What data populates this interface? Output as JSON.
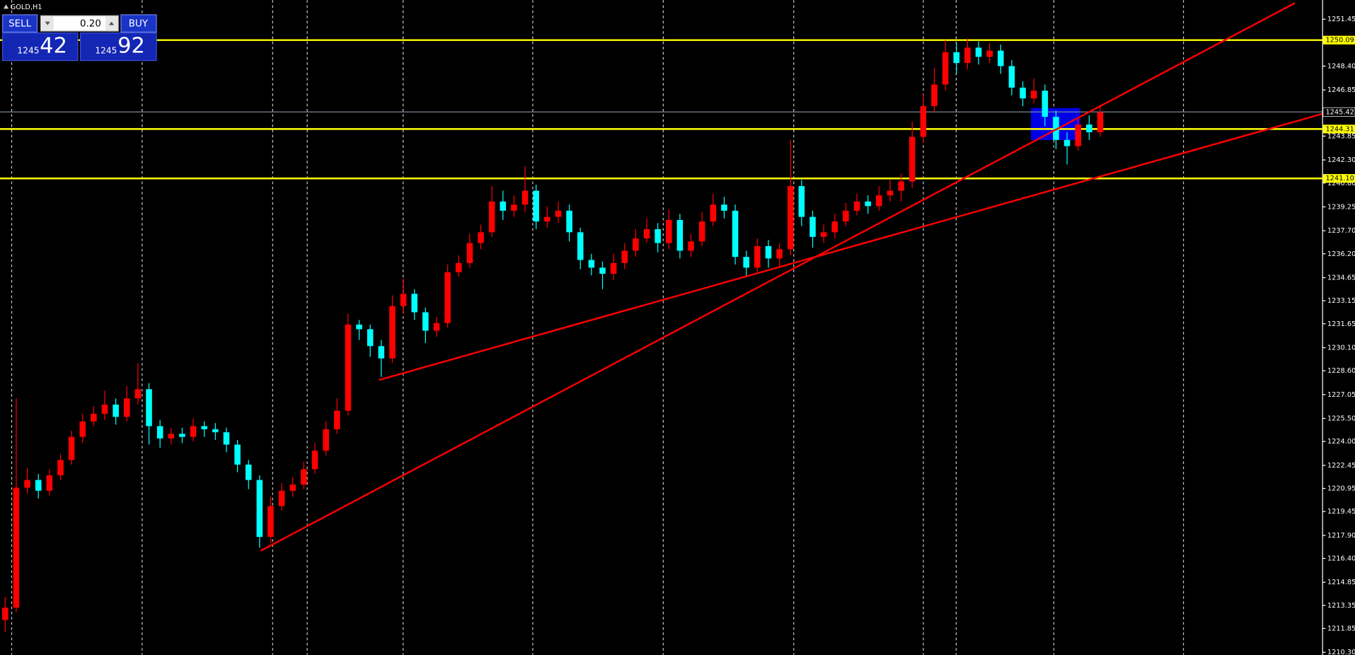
{
  "chart_data": {
    "type": "candlestick",
    "title": "GOLD,H1",
    "up_color": "#ff0000",
    "down_color": "#00ffff",
    "grid": true,
    "ylim": [
      1210.13,
      1252.69
    ],
    "yticks": [
      1251.45,
      {
        "value": 1248.4,
        "label": "1248.40"
      },
      1246.85,
      1243.85,
      {
        "value": 1242.3,
        "label": "1242.30"
      },
      {
        "value": 1240.8,
        "label": "1240.80"
      },
      1239.25,
      {
        "value": 1237.7,
        "label": "1237.70"
      },
      {
        "value": 1236.2,
        "label": "1236.20"
      },
      1234.65,
      1233.15,
      1231.65,
      {
        "value": 1230.1,
        "label": "1230.10"
      },
      {
        "value": 1228.6,
        "label": "1228.60"
      },
      1227.05,
      {
        "value": 1225.5,
        "label": "1225.50"
      },
      {
        "value": 1224.0,
        "label": "1224.00"
      },
      1222.45,
      1220.95,
      1219.45,
      {
        "value": 1217.9,
        "label": "1217.90"
      },
      {
        "value": 1216.4,
        "label": "1216.40"
      },
      1214.85,
      1213.35,
      1211.85,
      {
        "value": 1210.3,
        "label": "1210.30"
      }
    ],
    "open": [
      1212.4,
      1213.2,
      1221.0,
      1221.5,
      1220.8,
      1221.8,
      1222.8,
      1224.3,
      1225.3,
      1225.8,
      1226.4,
      1225.6,
      1226.8,
      1227.4,
      1225.0,
      1224.2,
      1224.5,
      1224.3,
      1225.0,
      1224.8,
      1224.6,
      1223.8,
      1222.5,
      1221.5,
      1217.8,
      1219.8,
      1220.8,
      1221.2,
      1222.2,
      1223.4,
      1224.8,
      1226.0,
      1231.6,
      1231.3,
      1230.2,
      1229.4,
      1232.8,
      1233.6,
      1232.4,
      1231.2,
      1231.7,
      1235.0,
      1235.6,
      1236.9,
      1237.6,
      1239.6,
      1239.0,
      1239.4,
      1240.3,
      1238.3,
      1238.6,
      1239.0,
      1237.6,
      1235.8,
      1235.3,
      1234.9,
      1235.6,
      1236.4,
      1237.2,
      1237.8,
      1236.9,
      1238.4,
      1236.4,
      1237.0,
      1238.3,
      1239.4,
      1239.0,
      1236.0,
      1235.3,
      1236.7,
      1235.9,
      1236.5,
      1240.6,
      1238.6,
      1237.3,
      1237.6,
      1238.3,
      1239.0,
      1239.6,
      1239.3,
      1240.0,
      1240.3,
      1240.9,
      1243.8,
      1245.8,
      1247.2,
      1249.3,
      1248.6,
      1249.6,
      1249.0,
      1249.4,
      1248.4,
      1247.0,
      1246.3,
      1246.8,
      1245.1,
      1243.6,
      1243.2,
      1244.6,
      1244.1
    ],
    "high": [
      1213.9,
      1226.8,
      1222.3,
      1221.9,
      1222.2,
      1223.2,
      1224.7,
      1225.8,
      1226.3,
      1227.3,
      1226.8,
      1227.6,
      1229.1,
      1227.8,
      1225.4,
      1224.9,
      1224.9,
      1225.5,
      1225.3,
      1225.2,
      1224.9,
      1224.1,
      1222.8,
      1221.8,
      1220.4,
      1221.3,
      1221.7,
      1222.7,
      1223.9,
      1225.3,
      1226.8,
      1232.3,
      1231.9,
      1231.6,
      1230.6,
      1233.5,
      1234.6,
      1233.9,
      1232.7,
      1232.1,
      1235.5,
      1236.1,
      1237.5,
      1238.1,
      1240.6,
      1240.3,
      1240.0,
      1241.9,
      1240.7,
      1239.3,
      1239.6,
      1239.4,
      1237.9,
      1236.2,
      1235.7,
      1236.2,
      1236.9,
      1237.8,
      1238.5,
      1238.2,
      1239.1,
      1238.8,
      1237.5,
      1238.9,
      1240.1,
      1239.9,
      1239.4,
      1236.4,
      1237.2,
      1237.1,
      1236.9,
      1243.6,
      1241.0,
      1239.0,
      1238.1,
      1238.8,
      1239.5,
      1240.1,
      1240.0,
      1240.6,
      1241.0,
      1241.4,
      1244.8,
      1246.6,
      1248.3,
      1250.1,
      1249.9,
      1250.2,
      1250.0,
      1249.9,
      1249.8,
      1248.8,
      1247.4,
      1247.6,
      1247.2,
      1245.5,
      1244.1,
      1245.0,
      1245.2,
      1245.9
    ],
    "low": [
      1211.6,
      1212.9,
      1220.6,
      1220.3,
      1220.5,
      1221.5,
      1222.5,
      1223.9,
      1225.0,
      1225.4,
      1225.1,
      1225.3,
      1226.4,
      1223.8,
      1223.6,
      1223.8,
      1223.9,
      1224.0,
      1224.3,
      1224.1,
      1223.3,
      1222.0,
      1220.9,
      1217.1,
      1217.4,
      1219.5,
      1220.4,
      1220.9,
      1221.9,
      1223.1,
      1224.5,
      1225.7,
      1230.6,
      1229.5,
      1228.2,
      1229.1,
      1232.3,
      1231.9,
      1230.4,
      1230.8,
      1231.4,
      1234.7,
      1235.3,
      1236.5,
      1237.3,
      1238.4,
      1238.6,
      1238.9,
      1237.8,
      1237.9,
      1238.2,
      1237.0,
      1235.2,
      1234.8,
      1233.9,
      1234.5,
      1235.2,
      1236.0,
      1236.9,
      1236.3,
      1236.5,
      1235.9,
      1236.0,
      1236.7,
      1238.0,
      1238.5,
      1235.5,
      1234.7,
      1235.0,
      1235.3,
      1235.4,
      1236.1,
      1238.0,
      1236.6,
      1236.9,
      1237.2,
      1238.0,
      1238.7,
      1238.8,
      1239.0,
      1239.6,
      1239.6,
      1240.5,
      1243.4,
      1245.4,
      1246.8,
      1247.9,
      1248.2,
      1248.5,
      1248.6,
      1247.9,
      1246.5,
      1245.8,
      1246.0,
      1244.5,
      1243.0,
      1242.0,
      1242.9,
      1243.6,
      1243.8
    ],
    "close": [
      1213.2,
      1221.0,
      1221.5,
      1220.8,
      1221.8,
      1222.8,
      1224.3,
      1225.3,
      1225.8,
      1226.4,
      1225.6,
      1226.8,
      1227.4,
      1225.0,
      1224.2,
      1224.5,
      1224.3,
      1225.0,
      1224.8,
      1224.6,
      1223.8,
      1222.5,
      1221.5,
      1217.8,
      1219.8,
      1220.8,
      1221.2,
      1222.2,
      1223.4,
      1224.8,
      1226.0,
      1231.6,
      1231.3,
      1230.2,
      1229.4,
      1232.8,
      1233.6,
      1232.4,
      1231.2,
      1231.7,
      1235.0,
      1235.6,
      1236.9,
      1237.6,
      1239.6,
      1239.0,
      1239.4,
      1240.3,
      1238.3,
      1238.6,
      1239.0,
      1237.6,
      1235.8,
      1235.3,
      1234.9,
      1235.6,
      1236.4,
      1237.2,
      1237.8,
      1236.9,
      1238.4,
      1236.4,
      1237.0,
      1238.3,
      1239.4,
      1239.0,
      1236.0,
      1235.3,
      1236.7,
      1235.9,
      1236.5,
      1240.6,
      1238.6,
      1237.3,
      1237.6,
      1238.3,
      1239.0,
      1239.6,
      1239.3,
      1240.0,
      1240.3,
      1240.9,
      1243.8,
      1245.8,
      1247.2,
      1249.3,
      1248.6,
      1249.6,
      1249.0,
      1249.4,
      1248.4,
      1247.0,
      1246.3,
      1246.8,
      1245.1,
      1243.6,
      1243.2,
      1244.6,
      1244.1,
      1245.4
    ],
    "levels": {
      "color": "#ffff00",
      "values": [
        1250.09,
        1244.31,
        1241.1
      ],
      "value_labels": [
        "1250.09",
        "1244.31",
        "1241.10"
      ]
    },
    "last_price": 1245.42,
    "trendlines": {
      "color": "#ff0000",
      "lines": [
        {
          "x": [
            23.1,
            116.6
          ],
          "y": [
            1216.9,
            1252.5
          ]
        },
        {
          "x": [
            33.8,
            119.1
          ],
          "y": [
            1228.0,
            1245.3
          ]
        }
      ]
    }
  },
  "trade_panel": {
    "sell": "SELL",
    "buy": "BUY",
    "volume": "0.20",
    "bid_big": "1245",
    "bid_small": "42",
    "ask_big": "1245",
    "ask_small": "92"
  }
}
